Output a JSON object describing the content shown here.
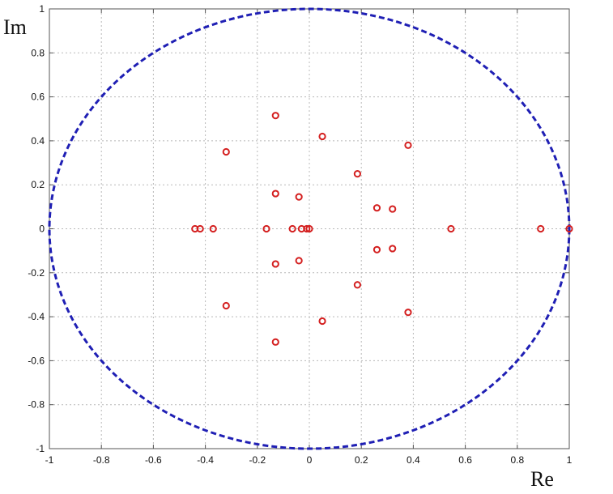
{
  "chart_data": {
    "type": "scatter",
    "title": "",
    "xlabel": "Re",
    "ylabel": "Im",
    "xlim": [
      -1,
      1
    ],
    "ylim": [
      -1,
      1
    ],
    "xticks": [
      "-1",
      "-0.8",
      "-0.6",
      "-0.4",
      "-0.2",
      "0",
      "0.2",
      "0.4",
      "0.6",
      "0.8",
      "1"
    ],
    "yticks": [
      "1",
      "0.8",
      "0.6",
      "0.4",
      "0.2",
      "0",
      "-0.2",
      "-0.4",
      "-0.6",
      "-0.8",
      "-1"
    ],
    "grid": true,
    "unit_circle": {
      "radius": 1,
      "style": "dashed",
      "color": "#1f1fb4"
    },
    "marker": {
      "shape": "circle-open",
      "color": "#d42020"
    },
    "points": [
      {
        "x": 1.0,
        "y": 0
      },
      {
        "x": 0.89,
        "y": 0
      },
      {
        "x": 0.545,
        "y": 0
      },
      {
        "x": 0.38,
        "y": 0.38
      },
      {
        "x": 0.38,
        "y": -0.38
      },
      {
        "x": 0.32,
        "y": 0.09
      },
      {
        "x": 0.32,
        "y": -0.09
      },
      {
        "x": 0.26,
        "y": 0.095
      },
      {
        "x": 0.26,
        "y": -0.095
      },
      {
        "x": 0.185,
        "y": 0.25
      },
      {
        "x": 0.185,
        "y": -0.255
      },
      {
        "x": 0.05,
        "y": 0.42
      },
      {
        "x": 0.05,
        "y": -0.42
      },
      {
        "x": 0.0,
        "y": 0
      },
      {
        "x": -0.01,
        "y": 0
      },
      {
        "x": -0.03,
        "y": 0
      },
      {
        "x": -0.04,
        "y": 0.145
      },
      {
        "x": -0.04,
        "y": -0.145
      },
      {
        "x": -0.065,
        "y": 0
      },
      {
        "x": -0.13,
        "y": 0.515
      },
      {
        "x": -0.13,
        "y": -0.515
      },
      {
        "x": -0.13,
        "y": 0.16
      },
      {
        "x": -0.13,
        "y": -0.16
      },
      {
        "x": -0.165,
        "y": 0
      },
      {
        "x": -0.32,
        "y": 0.35
      },
      {
        "x": -0.32,
        "y": -0.35
      },
      {
        "x": -0.37,
        "y": 0
      },
      {
        "x": -0.42,
        "y": 0
      },
      {
        "x": -0.44,
        "y": 0
      }
    ]
  }
}
